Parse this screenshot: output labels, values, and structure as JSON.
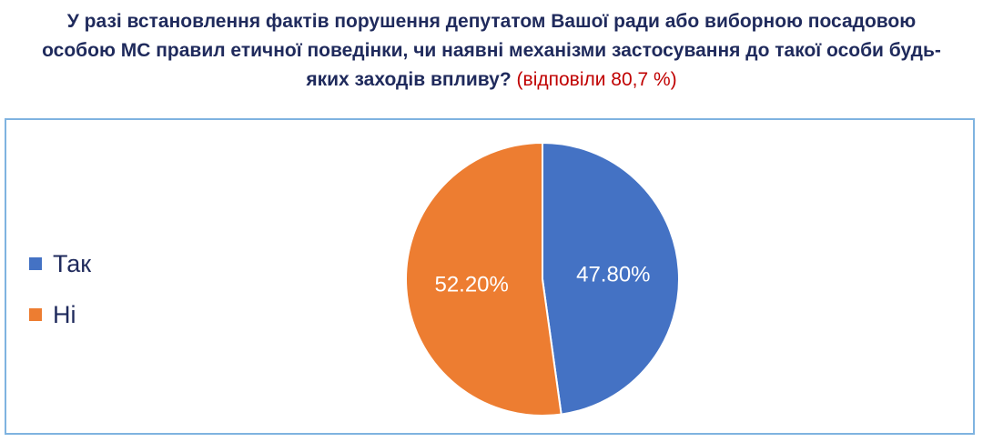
{
  "title": {
    "line1": "У разі встановлення фактів порушення депутатом Вашої ради або виборною посадовою",
    "line2": "особою МС правил етичної поведінки, чи наявні механізми застосування до такої особи будь-",
    "line3": "яких заходів впливу?",
    "response_note": "(відповіли 80,7 %)"
  },
  "chart_data": {
    "type": "pie",
    "categories": [
      "Так",
      "Ні"
    ],
    "values": [
      47.8,
      52.2
    ],
    "data_labels": [
      "47.80%",
      "52.20%"
    ],
    "colors": [
      "#4472c4",
      "#ed7d31"
    ],
    "legend_position": "left"
  }
}
